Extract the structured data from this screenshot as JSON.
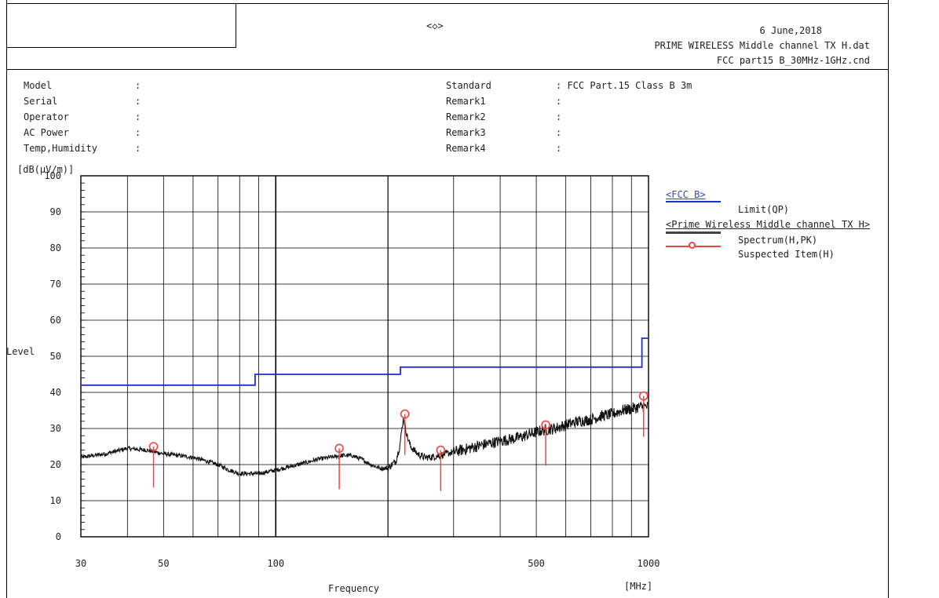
{
  "header": {
    "center_mark": "<◇>",
    "date": "6 June,2018",
    "data_file": "PRIME WIRELESS Middle channel TX H.dat",
    "condition_file": "FCC part15 B_30MHz-1GHz.cnd"
  },
  "info_left": [
    {
      "label": "Model",
      "value": ":"
    },
    {
      "label": "Serial",
      "value": ":"
    },
    {
      "label": "Operator",
      "value": ":"
    },
    {
      "label": "AC Power",
      "value": ":"
    },
    {
      "label": "Temp,Humidity",
      "value": ":"
    }
  ],
  "info_right": [
    {
      "label": "Standard",
      "value": ": FCC Part.15 Class B 3m"
    },
    {
      "label": "Remark1",
      "value": ":"
    },
    {
      "label": "Remark2",
      "value": ":"
    },
    {
      "label": "Remark3",
      "value": ":"
    },
    {
      "label": "Remark4",
      "value": ":"
    }
  ],
  "legend": {
    "group1_title": "<FCC B>",
    "limit_label": "Limit(QP)",
    "group2_title": "<Prime Wireless Middle channel TX H>",
    "spectrum_label": "Spectrum(H,PK)",
    "suspected_label": "Suspected Item(H)"
  },
  "colors": {
    "limit": "#1f2fd0",
    "spectrum": "#111111",
    "suspected": "#ee4444",
    "grid": "#000000"
  },
  "chart_data": {
    "type": "line",
    "ylabel_unit": "[dB(μV/m)]",
    "ylabel": "Level",
    "xlabel": "Frequency",
    "xlabel_unit": "[MHz]",
    "x_scale": "log",
    "xlim": [
      30,
      1000
    ],
    "ylim": [
      0,
      100
    ],
    "x_ticks": [
      30,
      50,
      100,
      500,
      1000
    ],
    "x_tick_labels": [
      "30",
      "50",
      "100",
      "500",
      "1000"
    ],
    "y_ticks": [
      0,
      10,
      20,
      30,
      40,
      50,
      60,
      70,
      80,
      90,
      100
    ],
    "y_tick_labels": [
      "0",
      "10",
      "20",
      "30",
      "40",
      "50",
      "60",
      "70",
      "80",
      "90",
      "100"
    ],
    "grid": true,
    "series": [
      {
        "name": "Limit(QP)",
        "kind": "step",
        "x": [
          30,
          88,
          88,
          216,
          216,
          960,
          960,
          1000
        ],
        "y": [
          42,
          42,
          45,
          45,
          47,
          47,
          55,
          55
        ]
      },
      {
        "name": "Spectrum(H,PK)",
        "kind": "line",
        "x": [
          30,
          35,
          40,
          45,
          50,
          55,
          60,
          65,
          70,
          75,
          80,
          85,
          90,
          95,
          100,
          110,
          120,
          130,
          140,
          150,
          160,
          170,
          180,
          190,
          200,
          210,
          215,
          220,
          225,
          230,
          240,
          250,
          260,
          275,
          300,
          330,
          360,
          400,
          450,
          500,
          520,
          560,
          600,
          650,
          700,
          750,
          800,
          850,
          900,
          950,
          1000
        ],
        "y": [
          22,
          23,
          24.5,
          24,
          23,
          22.5,
          22,
          21,
          20,
          18.5,
          17.5,
          17.5,
          17.5,
          18,
          18.5,
          19.5,
          20.5,
          21.5,
          22,
          22.5,
          22.5,
          21.5,
          20,
          19,
          19,
          21,
          25,
          33,
          28,
          25,
          23,
          22,
          22,
          22.5,
          23.5,
          24.5,
          25.5,
          26.5,
          27.5,
          29,
          29.5,
          30,
          31,
          32,
          32.5,
          33.5,
          34,
          35,
          35.5,
          36,
          36
        ]
      },
      {
        "name": "Suspected Item(H)",
        "kind": "markers",
        "x": [
          47,
          148,
          222,
          277,
          530,
          970
        ],
        "y": [
          25,
          24.5,
          34,
          24,
          31,
          39
        ]
      }
    ]
  }
}
